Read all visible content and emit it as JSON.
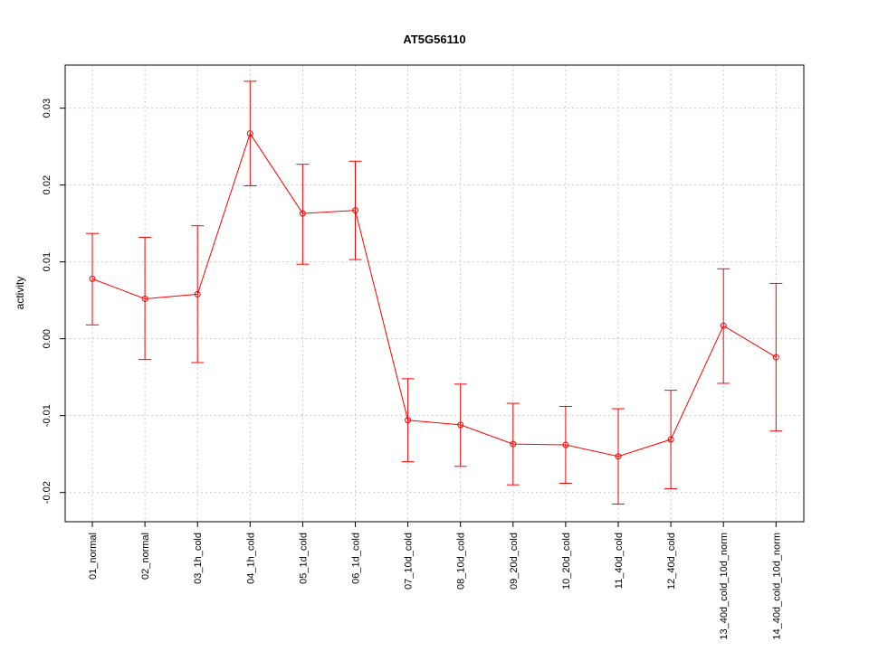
{
  "chart_data": {
    "type": "line",
    "title": "AT5G56110",
    "xlabel": "",
    "ylabel": "activity",
    "ylim": [
      -0.0238,
      0.0356
    ],
    "yticks": [
      -0.02,
      -0.01,
      0.0,
      0.01,
      0.02,
      0.03
    ],
    "ytick_labels": [
      "-0.02",
      "-0.01",
      "0.00",
      "0.01",
      "0.02",
      "0.03"
    ],
    "grid": true,
    "series_color": "#ff0000",
    "categories": [
      "01_normal",
      "02_normal",
      "03_1h_cold",
      "04_1h_cold",
      "05_1d_cold",
      "06_1d_cold",
      "07_10d_cold",
      "08_10d_cold",
      "09_20d_cold",
      "10_20d_cold",
      "11_40d_cold",
      "12_40d_cold",
      "13_40d_cold_10d_norm",
      "14_40d_cold_10d_norm"
    ],
    "series": [
      {
        "values": [
          0.0078,
          0.0052,
          0.0058,
          0.0267,
          0.0163,
          0.0167,
          -0.0106,
          -0.0112,
          -0.0137,
          -0.0138,
          -0.0153,
          -0.0131,
          0.0017,
          -0.0024
        ],
        "err_upper": [
          0.0137,
          0.0132,
          0.0147,
          0.0335,
          0.0227,
          0.0231,
          -0.0052,
          -0.0059,
          -0.0084,
          -0.0088,
          -0.0091,
          -0.0067,
          0.0091,
          0.0072
        ],
        "err_lower": [
          0.0018,
          -0.0027,
          -0.0031,
          0.0199,
          0.0097,
          0.0103,
          -0.016,
          -0.0166,
          -0.019,
          -0.0188,
          -0.0215,
          -0.0195,
          -0.0058,
          -0.012
        ]
      }
    ]
  }
}
